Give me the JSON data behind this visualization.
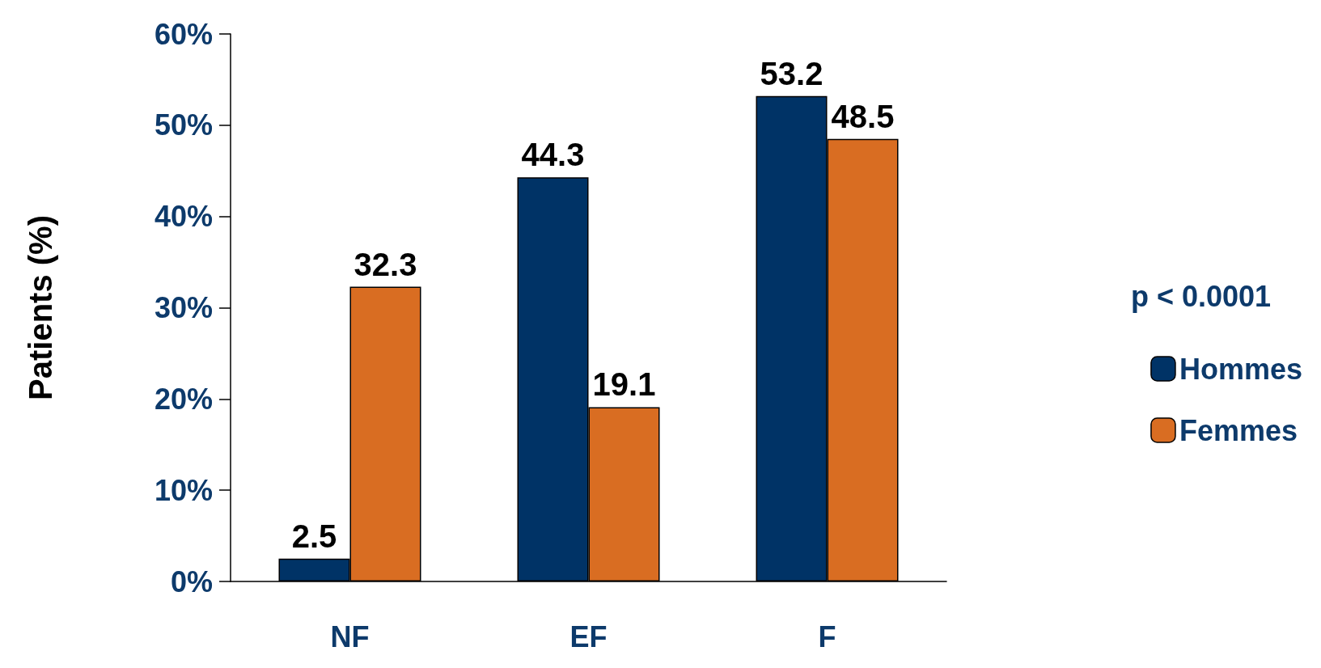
{
  "chart_data": {
    "type": "bar",
    "ylabel": "Patients (%)",
    "categories": [
      "NF",
      "EF",
      "F"
    ],
    "series": [
      {
        "name": "Hommes",
        "color": "#003366",
        "values": [
          2.5,
          44.3,
          53.2
        ]
      },
      {
        "name": "Femmes",
        "color": "#d96d22",
        "values": [
          32.3,
          19.1,
          48.5
        ]
      }
    ],
    "ylim": [
      0,
      60
    ],
    "yticks": [
      {
        "value": 0,
        "label": "0%"
      },
      {
        "value": 10,
        "label": "10%"
      },
      {
        "value": 20,
        "label": "20%"
      },
      {
        "value": 30,
        "label": "30%"
      },
      {
        "value": 40,
        "label": "40%"
      },
      {
        "value": 50,
        "label": "50%"
      },
      {
        "value": 60,
        "label": "60%"
      }
    ],
    "data_labels": true,
    "grid": false,
    "legend": "right",
    "annotations": [
      "p < 0.0001"
    ]
  }
}
